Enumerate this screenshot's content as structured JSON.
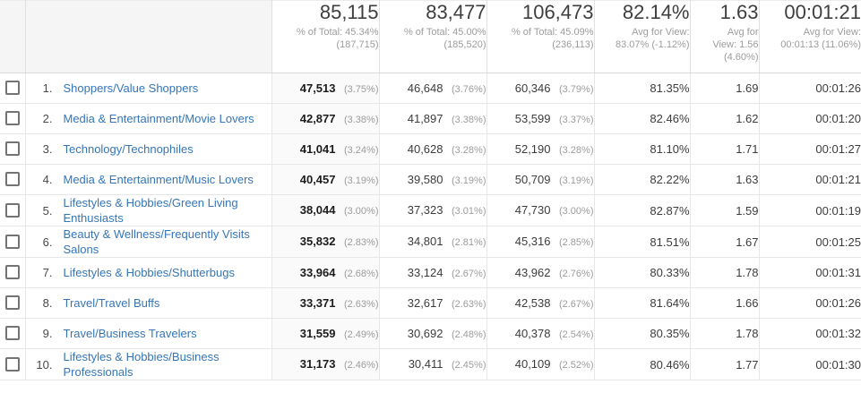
{
  "table": {
    "colors": {
      "link_blue": "#3576b8",
      "header_gray_bg": "#f5f5f5",
      "sorted_col_bg": "#fafafa"
    },
    "summary": [
      {
        "value": "85,115",
        "sub_lines": [
          "% of Total: 45.34%",
          "(187,715)"
        ]
      },
      {
        "value": "83,477",
        "sub_lines": [
          "% of Total: 45.00%",
          "(185,520)"
        ]
      },
      {
        "value": "106,473",
        "sub_lines": [
          "% of Total: 45.09%",
          "(236,113)"
        ]
      },
      {
        "value": "82.14%",
        "sub_lines": [
          "Avg for View:",
          "83.07% (-1.12%)"
        ]
      },
      {
        "value": "1.63",
        "sub_lines": [
          "Avg for",
          "View: 1.56",
          "(4.60%)"
        ]
      },
      {
        "value": "00:01:21",
        "sub_lines": [
          "Avg for View:",
          "00:01:13 (11.06%)"
        ]
      }
    ],
    "rows": [
      {
        "rank": "1.",
        "category": "Shoppers/Value Shoppers",
        "users": "47,513",
        "users_pct": "(3.75%)",
        "new_users": "46,648",
        "new_users_pct": "(3.76%)",
        "sessions": "60,346",
        "sessions_pct": "(3.79%)",
        "metric_pct": "81.35%",
        "metric_ratio": "1.69",
        "duration": "00:01:26"
      },
      {
        "rank": "2.",
        "category": "Media & Entertainment/Movie Lovers",
        "users": "42,877",
        "users_pct": "(3.38%)",
        "new_users": "41,897",
        "new_users_pct": "(3.38%)",
        "sessions": "53,599",
        "sessions_pct": "(3.37%)",
        "metric_pct": "82.46%",
        "metric_ratio": "1.62",
        "duration": "00:01:20"
      },
      {
        "rank": "3.",
        "category": "Technology/Technophiles",
        "users": "41,041",
        "users_pct": "(3.24%)",
        "new_users": "40,628",
        "new_users_pct": "(3.28%)",
        "sessions": "52,190",
        "sessions_pct": "(3.28%)",
        "metric_pct": "81.10%",
        "metric_ratio": "1.71",
        "duration": "00:01:27"
      },
      {
        "rank": "4.",
        "category": "Media & Entertainment/Music Lovers",
        "users": "40,457",
        "users_pct": "(3.19%)",
        "new_users": "39,580",
        "new_users_pct": "(3.19%)",
        "sessions": "50,709",
        "sessions_pct": "(3.19%)",
        "metric_pct": "82.22%",
        "metric_ratio": "1.63",
        "duration": "00:01:21"
      },
      {
        "rank": "5.",
        "category": "Lifestyles & Hobbies/Green Living Enthusiasts",
        "users": "38,044",
        "users_pct": "(3.00%)",
        "new_users": "37,323",
        "new_users_pct": "(3.01%)",
        "sessions": "47,730",
        "sessions_pct": "(3.00%)",
        "metric_pct": "82.87%",
        "metric_ratio": "1.59",
        "duration": "00:01:19"
      },
      {
        "rank": "6.",
        "category": "Beauty & Wellness/Frequently Visits Salons",
        "users": "35,832",
        "users_pct": "(2.83%)",
        "new_users": "34,801",
        "new_users_pct": "(2.81%)",
        "sessions": "45,316",
        "sessions_pct": "(2.85%)",
        "metric_pct": "81.51%",
        "metric_ratio": "1.67",
        "duration": "00:01:25"
      },
      {
        "rank": "7.",
        "category": "Lifestyles & Hobbies/Shutterbugs",
        "users": "33,964",
        "users_pct": "(2.68%)",
        "new_users": "33,124",
        "new_users_pct": "(2.67%)",
        "sessions": "43,962",
        "sessions_pct": "(2.76%)",
        "metric_pct": "80.33%",
        "metric_ratio": "1.78",
        "duration": "00:01:31"
      },
      {
        "rank": "8.",
        "category": "Travel/Travel Buffs",
        "users": "33,371",
        "users_pct": "(2.63%)",
        "new_users": "32,617",
        "new_users_pct": "(2.63%)",
        "sessions": "42,538",
        "sessions_pct": "(2.67%)",
        "metric_pct": "81.64%",
        "metric_ratio": "1.66",
        "duration": "00:01:26"
      },
      {
        "rank": "9.",
        "category": "Travel/Business Travelers",
        "users": "31,559",
        "users_pct": "(2.49%)",
        "new_users": "30,692",
        "new_users_pct": "(2.48%)",
        "sessions": "40,378",
        "sessions_pct": "(2.54%)",
        "metric_pct": "80.35%",
        "metric_ratio": "1.78",
        "duration": "00:01:32"
      },
      {
        "rank": "10.",
        "category": "Lifestyles & Hobbies/Business Professionals",
        "users": "31,173",
        "users_pct": "(2.46%)",
        "new_users": "30,411",
        "new_users_pct": "(2.45%)",
        "sessions": "40,109",
        "sessions_pct": "(2.52%)",
        "metric_pct": "80.46%",
        "metric_ratio": "1.77",
        "duration": "00:01:30"
      }
    ]
  }
}
